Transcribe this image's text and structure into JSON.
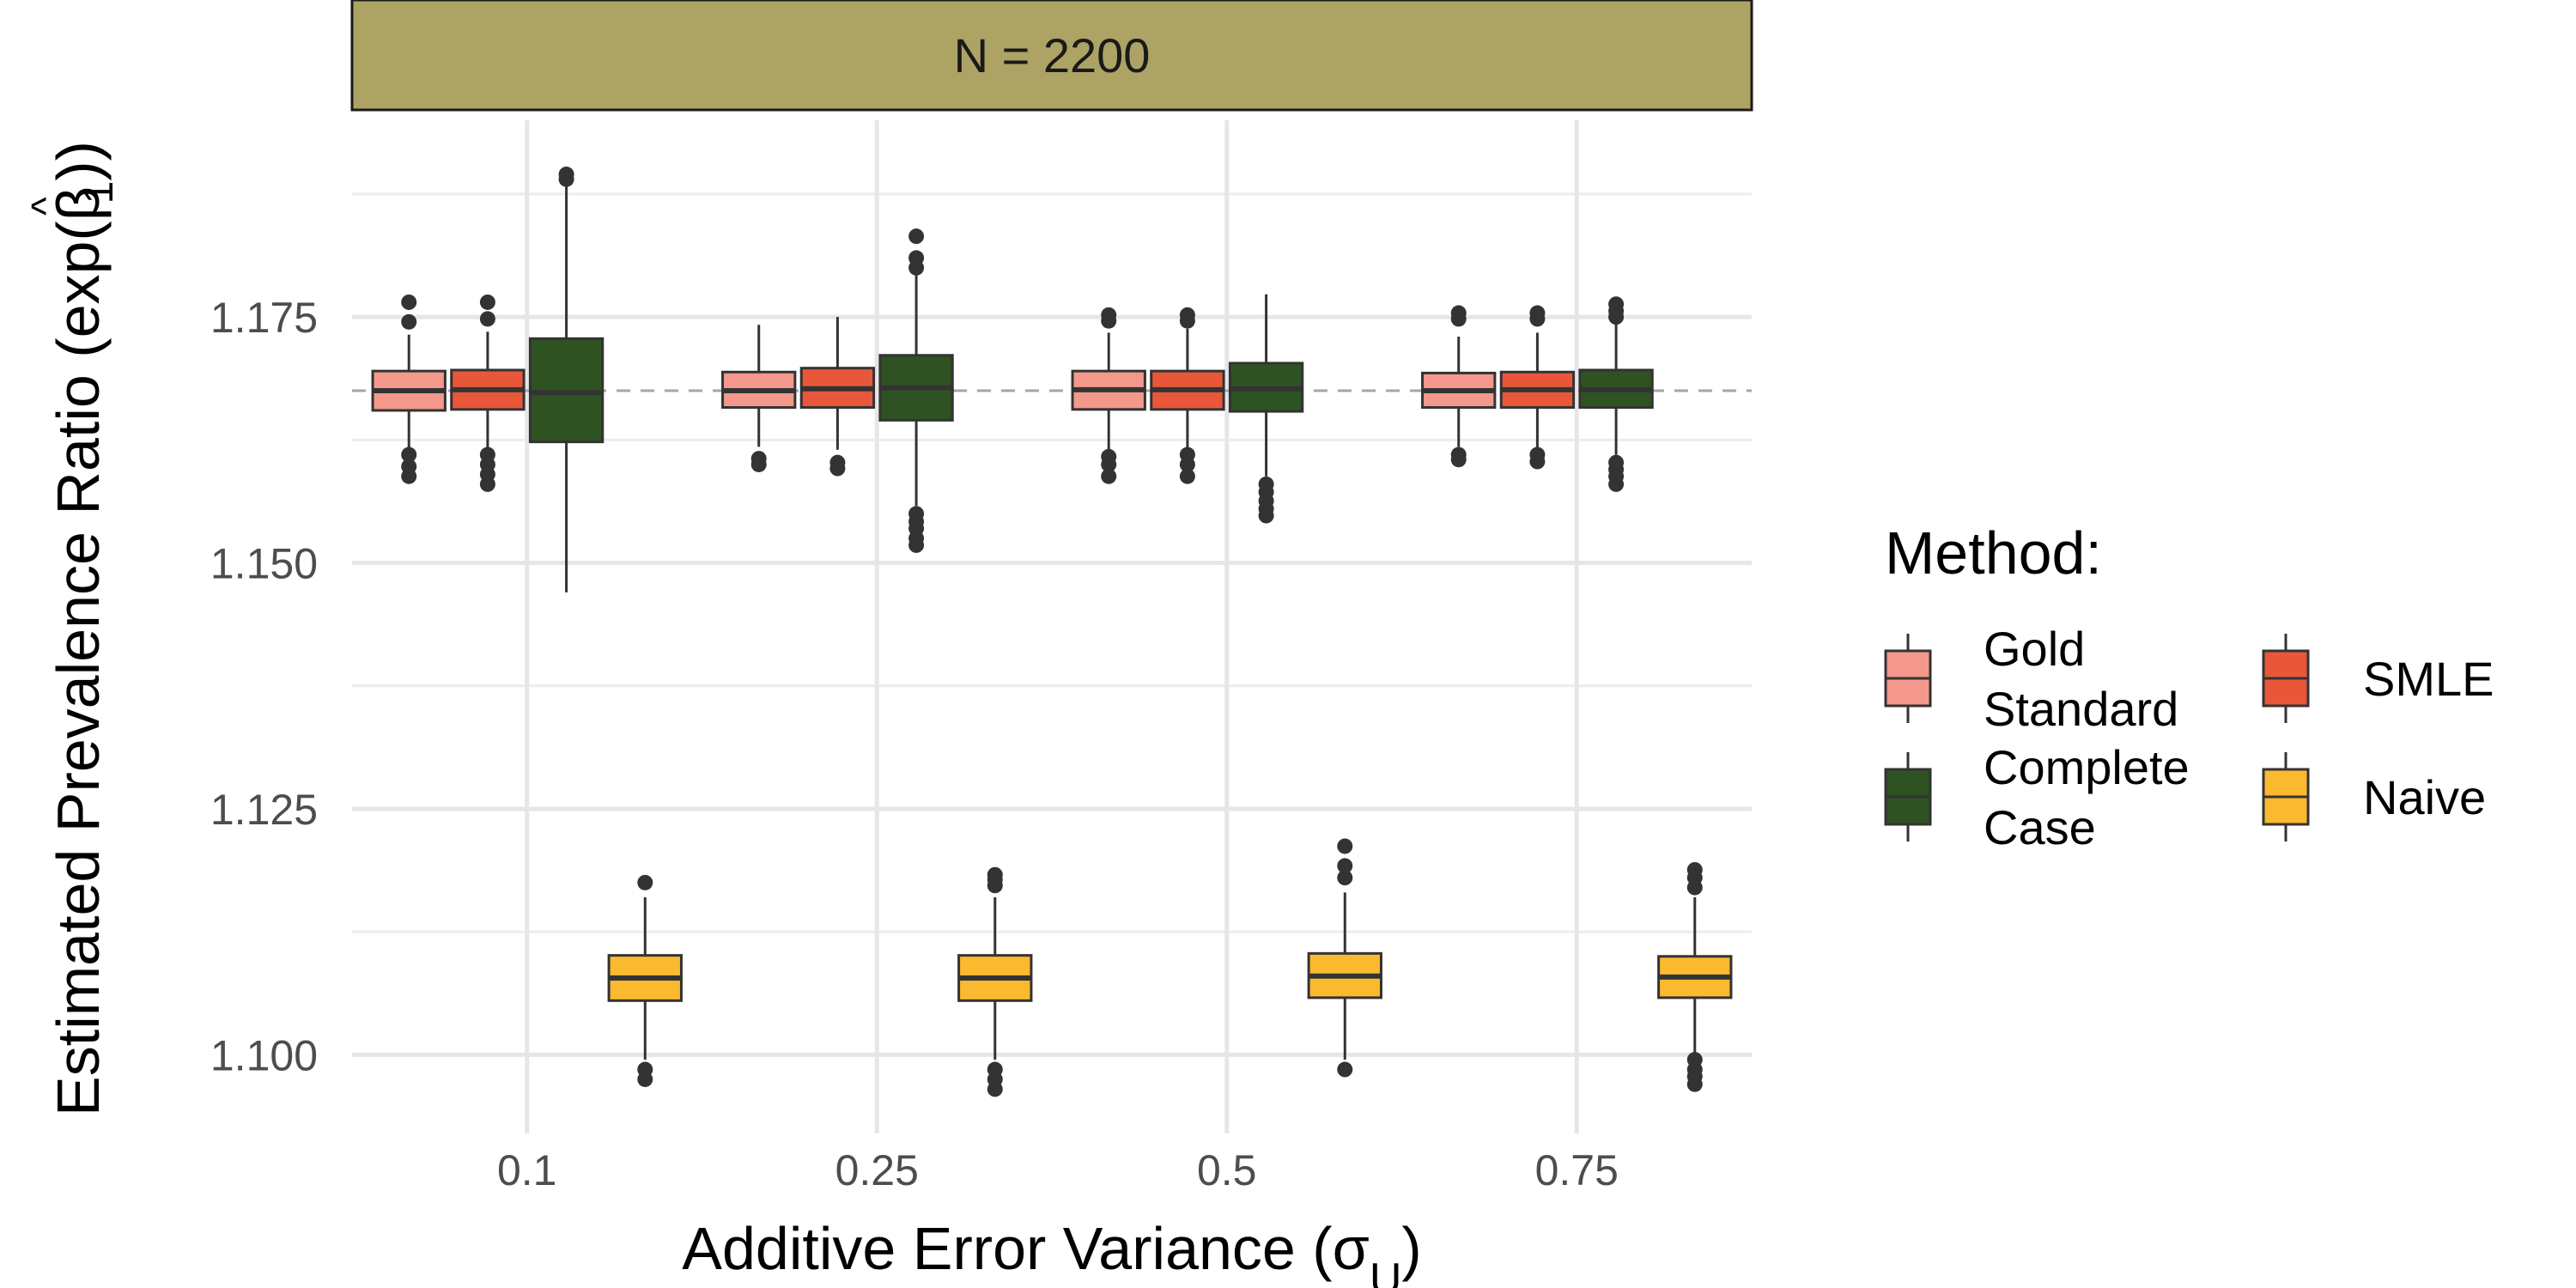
{
  "chart_data": {
    "type": "boxplot",
    "facet_label": "N = 2200",
    "xlabel": "Additive Error Variance (σ",
    "xlabel_sub": "U",
    "xlabel_end": ")",
    "ylabel": "Estimated Prevalence Ratio (exp(",
    "ylabel_beta": "β",
    "ylabel_hat": "^",
    "ylabel_sub": "1",
    "ylabel_end": "))",
    "categories": [
      "0.1",
      "0.25",
      "0.5",
      "0.75"
    ],
    "yticks": [
      1.1,
      1.125,
      1.15,
      1.175
    ],
    "ytick_labels": [
      "1.100",
      "1.125",
      "1.150",
      "1.175"
    ],
    "ylim": [
      1.092,
      1.195
    ],
    "reference_line": 1.1675,
    "grid": true,
    "legend": {
      "title": "Method:",
      "position": "right",
      "items": [
        {
          "key": "gold",
          "lines": [
            "Gold",
            "Standard"
          ]
        },
        {
          "key": "smle",
          "lines": [
            "SMLE"
          ]
        },
        {
          "key": "cc",
          "lines": [
            "Complete",
            "Case"
          ]
        },
        {
          "key": "naive",
          "lines": [
            "Naive"
          ]
        }
      ]
    },
    "series": [
      {
        "key": "gold",
        "name": "Gold Standard",
        "color": "#F4988C",
        "boxes": [
          {
            "min": 1.1615,
            "q1": 1.1655,
            "median": 1.1675,
            "q3": 1.1695,
            "max": 1.1732,
            "outliers": [
              1.1765,
              1.1745,
              1.161,
              1.1598,
              1.1588
            ]
          },
          {
            "min": 1.1618,
            "q1": 1.1658,
            "median": 1.1675,
            "q3": 1.1694,
            "max": 1.1742,
            "outliers": [
              1.1606,
              1.16
            ]
          },
          {
            "min": 1.1615,
            "q1": 1.1656,
            "median": 1.1676,
            "q3": 1.1695,
            "max": 1.1734,
            "outliers": [
              1.1752,
              1.1746,
              1.1608,
              1.16,
              1.1588
            ]
          },
          {
            "min": 1.1618,
            "q1": 1.1658,
            "median": 1.1675,
            "q3": 1.1693,
            "max": 1.173,
            "outliers": [
              1.1754,
              1.1748,
              1.161,
              1.1605
            ]
          }
        ]
      },
      {
        "key": "smle",
        "name": "SMLE",
        "color": "#E8573A",
        "boxes": [
          {
            "min": 1.1615,
            "q1": 1.1656,
            "median": 1.1676,
            "q3": 1.1696,
            "max": 1.1735,
            "outliers": [
              1.1765,
              1.1748,
              1.161,
              1.16,
              1.159,
              1.158
            ]
          },
          {
            "min": 1.1615,
            "q1": 1.1658,
            "median": 1.1677,
            "q3": 1.1698,
            "max": 1.175,
            "outliers": [
              1.1602,
              1.1596
            ]
          },
          {
            "min": 1.1615,
            "q1": 1.1656,
            "median": 1.1676,
            "q3": 1.1695,
            "max": 1.1738,
            "outliers": [
              1.1752,
              1.1746,
              1.161,
              1.16,
              1.1588
            ]
          },
          {
            "min": 1.1616,
            "q1": 1.1658,
            "median": 1.1676,
            "q3": 1.1694,
            "max": 1.1734,
            "outliers": [
              1.1754,
              1.1748,
              1.161,
              1.1603
            ]
          }
        ]
      },
      {
        "key": "cc",
        "name": "Complete Case",
        "color": "#2F5223",
        "boxes": [
          {
            "min": 1.147,
            "q1": 1.1623,
            "median": 1.1673,
            "q3": 1.1728,
            "max": 1.1883,
            "outliers": [
              1.1895,
              1.189
            ]
          },
          {
            "min": 1.1558,
            "q1": 1.1645,
            "median": 1.1678,
            "q3": 1.1711,
            "max": 1.1795,
            "outliers": [
              1.1832,
              1.181,
              1.18,
              1.155,
              1.1542,
              1.1535,
              1.1525,
              1.1518
            ]
          },
          {
            "min": 1.1588,
            "q1": 1.1654,
            "median": 1.1677,
            "q3": 1.1703,
            "max": 1.1773,
            "outliers": [
              1.158,
              1.1572,
              1.1563,
              1.1555,
              1.1548
            ]
          },
          {
            "min": 1.161,
            "q1": 1.1658,
            "median": 1.1676,
            "q3": 1.1696,
            "max": 1.1745,
            "outliers": [
              1.1763,
              1.1756,
              1.175,
              1.1602,
              1.1595,
              1.1588,
              1.158
            ]
          }
        ]
      },
      {
        "key": "naive",
        "name": "Naive",
        "color": "#FBB92F",
        "boxes": [
          {
            "min": 1.0995,
            "q1": 1.1055,
            "median": 1.1078,
            "q3": 1.1101,
            "max": 1.116,
            "outliers": [
              1.1175,
              1.0985,
              1.0975
            ]
          },
          {
            "min": 1.0995,
            "q1": 1.1055,
            "median": 1.1078,
            "q3": 1.1101,
            "max": 1.116,
            "outliers": [
              1.1183,
              1.1178,
              1.1172,
              1.0985,
              1.0975,
              1.0965
            ]
          },
          {
            "min": 1.0995,
            "q1": 1.1058,
            "median": 1.108,
            "q3": 1.1103,
            "max": 1.1165,
            "outliers": [
              1.1212,
              1.1192,
              1.118,
              1.0985
            ]
          },
          {
            "min": 1.1,
            "q1": 1.1058,
            "median": 1.1079,
            "q3": 1.11,
            "max": 1.116,
            "outliers": [
              1.1188,
              1.118,
              1.117,
              1.0995,
              1.0985,
              1.0978,
              1.097
            ]
          }
        ]
      }
    ]
  }
}
